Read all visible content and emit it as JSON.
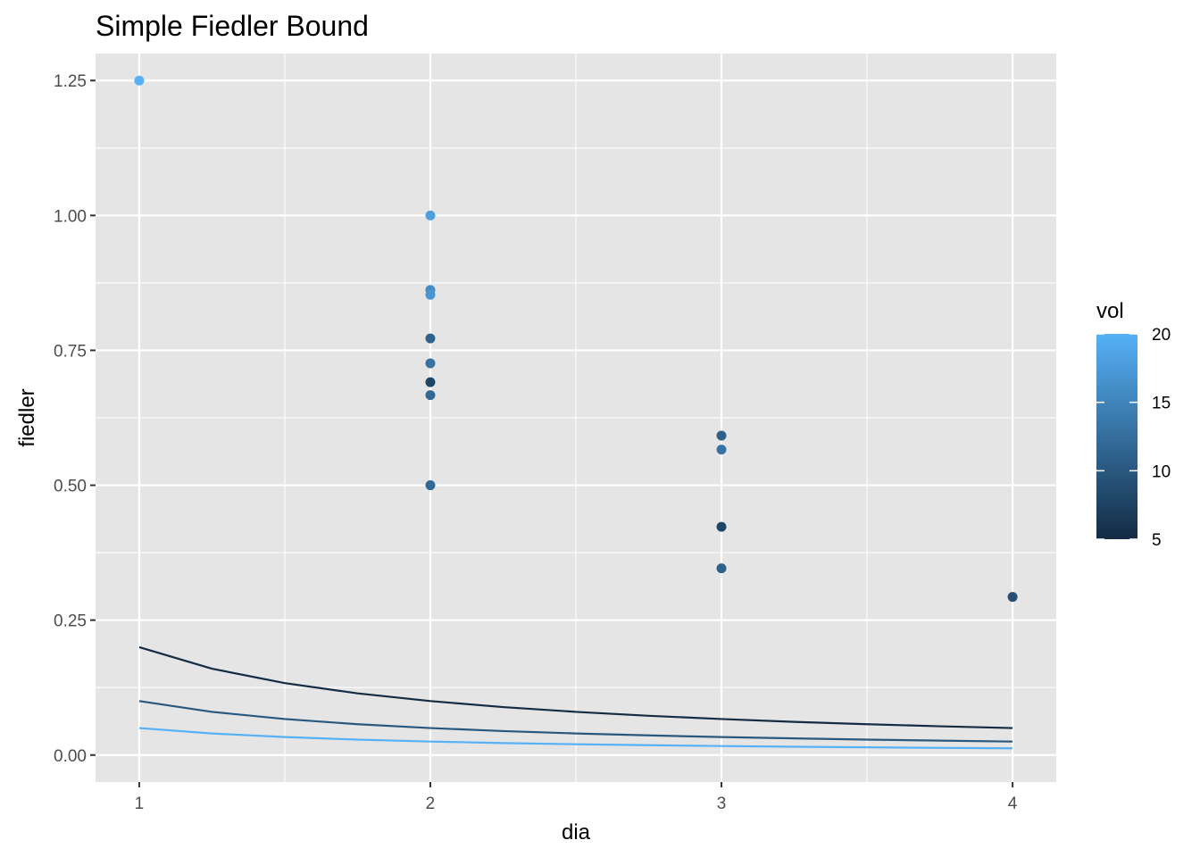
{
  "chart_data": {
    "type": "scatter",
    "title": "Simple Fiedler Bound",
    "xlabel": "dia",
    "ylabel": "fiedler",
    "xlim": [
      0.85,
      4.15
    ],
    "ylim": [
      -0.05,
      1.3
    ],
    "x_ticks": [
      1,
      2,
      3,
      4
    ],
    "x_tick_labels": [
      "1",
      "2",
      "3",
      "4"
    ],
    "y_ticks": [
      0,
      0.25,
      0.5,
      0.75,
      1.0,
      1.25
    ],
    "y_tick_labels": [
      "0.00",
      "0.25",
      "0.50",
      "0.75",
      "1.00",
      "1.25"
    ],
    "grid": true,
    "colors": {
      "panel_background": "#e5e5e5",
      "grid": "#ffffff",
      "low": "#132b43",
      "high": "#56b1f7"
    },
    "legend": {
      "title": "vol",
      "placement": "right",
      "range": [
        5,
        20
      ],
      "ticks": [
        5,
        10,
        15,
        20
      ],
      "tick_labels": [
        "5",
        "10",
        "15",
        "20"
      ]
    },
    "points": [
      {
        "x": 1,
        "y": 1.25,
        "vol": 20
      },
      {
        "x": 2,
        "y": 1.0,
        "vol": 18
      },
      {
        "x": 2,
        "y": 0.862,
        "vol": 16
      },
      {
        "x": 2,
        "y": 0.853,
        "vol": 17
      },
      {
        "x": 2,
        "y": 0.772,
        "vol": 11
      },
      {
        "x": 2,
        "y": 0.726,
        "vol": 13
      },
      {
        "x": 2,
        "y": 0.691,
        "vol": 8
      },
      {
        "x": 2,
        "y": 0.667,
        "vol": 12
      },
      {
        "x": 2,
        "y": 0.5,
        "vol": 12
      },
      {
        "x": 3,
        "y": 0.592,
        "vol": 11
      },
      {
        "x": 3,
        "y": 0.566,
        "vol": 13
      },
      {
        "x": 3,
        "y": 0.423,
        "vol": 8
      },
      {
        "x": 3,
        "y": 0.346,
        "vol": 11
      },
      {
        "x": 4,
        "y": 0.293,
        "vol": 9
      }
    ],
    "curves": [
      {
        "vol": 5,
        "x": [
          1.0,
          1.25,
          1.5,
          1.75,
          2.0,
          2.25,
          2.5,
          2.75,
          3.0,
          3.25,
          3.5,
          3.75,
          4.0
        ],
        "y": [
          0.2,
          0.16,
          0.1333,
          0.1143,
          0.1,
          0.0889,
          0.08,
          0.0727,
          0.0667,
          0.0615,
          0.0571,
          0.0533,
          0.05
        ]
      },
      {
        "vol": 10,
        "x": [
          1.0,
          1.25,
          1.5,
          1.75,
          2.0,
          2.25,
          2.5,
          2.75,
          3.0,
          3.25,
          3.5,
          3.75,
          4.0
        ],
        "y": [
          0.1,
          0.08,
          0.0667,
          0.0571,
          0.05,
          0.0444,
          0.04,
          0.0364,
          0.0333,
          0.0308,
          0.0286,
          0.0267,
          0.025
        ]
      },
      {
        "vol": 20,
        "x": [
          1.0,
          1.25,
          1.5,
          1.75,
          2.0,
          2.25,
          2.5,
          2.75,
          3.0,
          3.25,
          3.5,
          3.75,
          4.0
        ],
        "y": [
          0.05,
          0.04,
          0.0333,
          0.0286,
          0.025,
          0.0222,
          0.02,
          0.0182,
          0.0167,
          0.0154,
          0.0143,
          0.0133,
          0.0125
        ]
      }
    ]
  }
}
